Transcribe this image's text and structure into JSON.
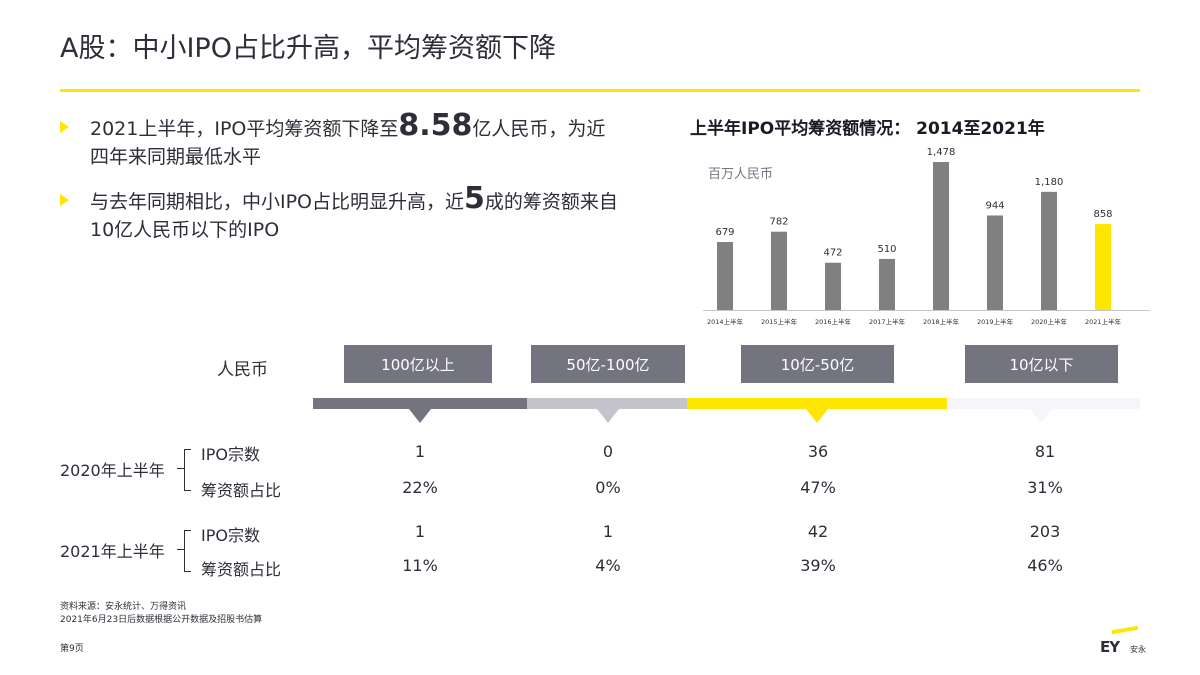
{
  "header": {
    "title": "A股：中小IPO占比升高，平均筹资额下降"
  },
  "bullets": [
    {
      "pre": "2021上半年，IPO平均筹资额下降至",
      "big": "8.58",
      "post": "亿人民币，为近四年来同期最低水平"
    },
    {
      "pre": "与去年同期相比，中小IPO占比明显升高，近",
      "big": "5",
      "post": "成的筹资额来自10亿人民币以下的IPO"
    }
  ],
  "chart_title": "上半年IPO平均筹资额情况： 2014至2021年",
  "chart_data": {
    "type": "bar",
    "title": "上半年IPO平均筹资额情况： 2014至2021年",
    "ylabel": "百万人民币",
    "categories": [
      "2014上半年",
      "2015上半年",
      "2016上半年",
      "2017上半年",
      "2018上半年",
      "2019上半年",
      "2020上半年",
      "2021上半年"
    ],
    "values": [
      679,
      782,
      472,
      510,
      1478,
      944,
      1180,
      858
    ],
    "value_labels": [
      "679",
      "782",
      "472",
      "510",
      "1,478",
      "944",
      "1,180",
      "858"
    ],
    "highlight_index": 7,
    "colors": {
      "bar": "#808080",
      "highlight": "#ffe600"
    },
    "ylim": [
      0,
      1478
    ],
    "grid": false
  },
  "table": {
    "currency_label": "人民币",
    "categories": [
      {
        "label": "100亿以上",
        "band_color": "#747480"
      },
      {
        "label": "50亿-100亿",
        "band_color": "#c4c4cd"
      },
      {
        "label": "10亿-50亿",
        "band_color": "#ffe600"
      },
      {
        "label": "10亿以下",
        "band_color": "#f6f6fa"
      }
    ],
    "years": [
      {
        "year": "2020年上半年",
        "rows": [
          {
            "label": "IPO宗数",
            "values": [
              "1",
              "0",
              "36",
              "81"
            ]
          },
          {
            "label": "筹资额占比",
            "values": [
              "22%",
              "0%",
              "47%",
              "31%"
            ]
          }
        ]
      },
      {
        "year": "2021年上半年",
        "rows": [
          {
            "label": "IPO宗数",
            "values": [
              "1",
              "1",
              "42",
              "203"
            ]
          },
          {
            "label": "筹资额占比",
            "values": [
              "11%",
              "4%",
              "39%",
              "46%"
            ]
          }
        ]
      }
    ]
  },
  "footer": {
    "source": "资料来源：安永统计、万得资讯",
    "note": "2021年6月23日后数据根据公开数据及招股书估算",
    "page": "第9页",
    "logo_text": "EY",
    "logo_cn": "安永"
  }
}
